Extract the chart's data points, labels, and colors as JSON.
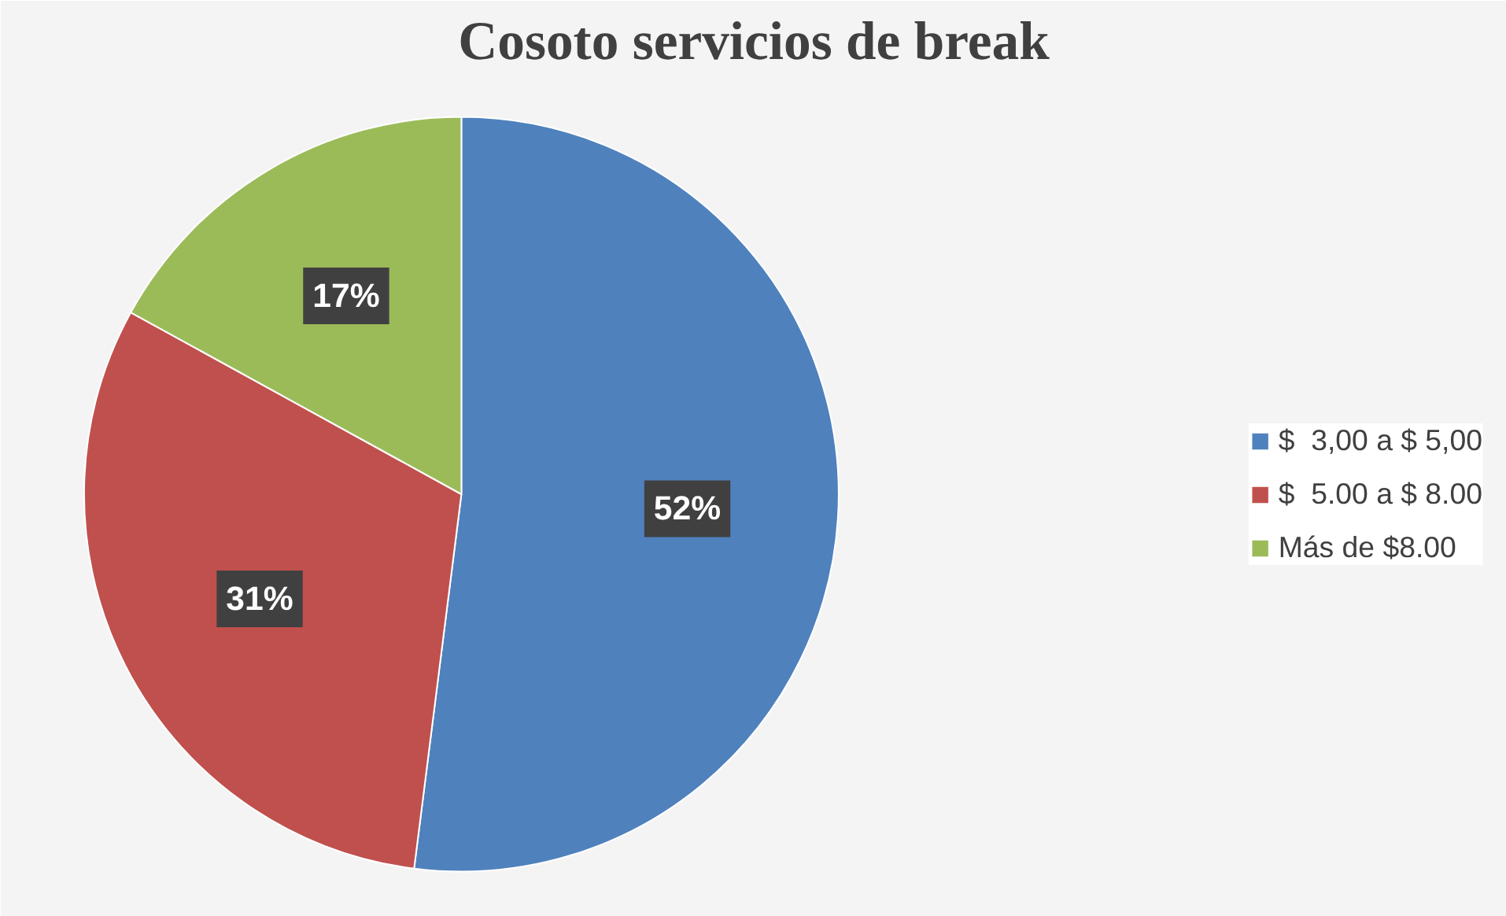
{
  "chart_data": {
    "type": "pie",
    "title": "Cosoto servicios de break",
    "categories": [
      "$  3,00 a $ 5,00",
      "$  5.00 a $ 8.00",
      "Más de $8.00"
    ],
    "values": [
      52,
      31,
      17
    ],
    "colors": [
      "#4f81bd",
      "#c0504d",
      "#9bbb59"
    ],
    "value_labels": [
      "52%",
      "31%",
      "17%"
    ],
    "legend": "right"
  }
}
